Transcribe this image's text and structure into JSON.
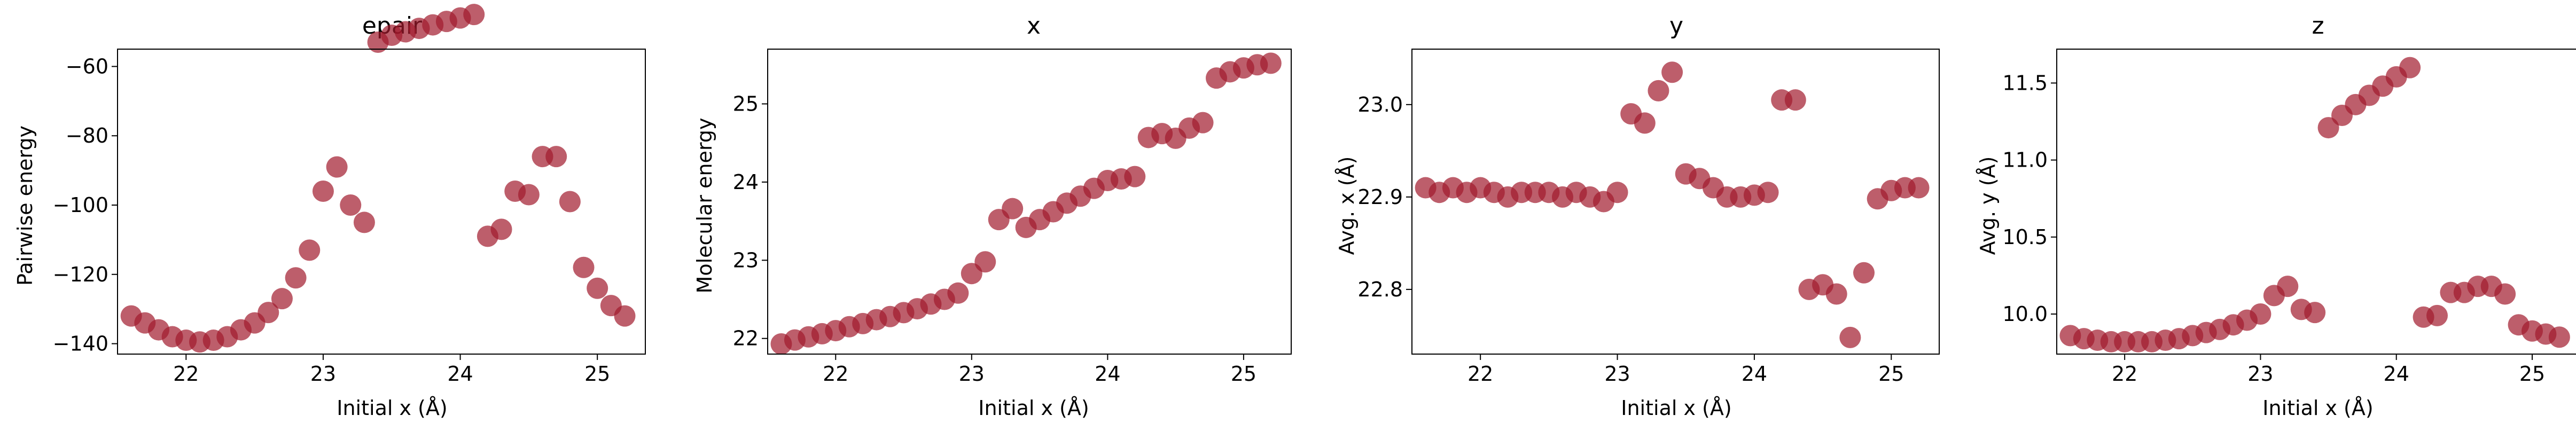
{
  "figure": {
    "marker_color": "#a11a2c",
    "marker_opacity": 0.7,
    "axes_color": "#000000"
  },
  "chart_data": [
    {
      "type": "scatter",
      "title": "epair",
      "xlabel": "Initial x (Å)",
      "ylabel": "Pairwise energy",
      "xlim": [
        21.5,
        25.35
      ],
      "ylim": [
        -143,
        -55
      ],
      "xticks": [
        22,
        23,
        24,
        25
      ],
      "xtick_labels": [
        "22",
        "23",
        "24",
        "25"
      ],
      "yticks": [
        -140,
        -120,
        -100,
        -80,
        -60
      ],
      "ytick_labels": [
        "−140",
        "−120",
        "−100",
        "−80",
        "−60"
      ],
      "x": [
        21.6,
        21.7,
        21.8,
        21.9,
        22.0,
        22.1,
        22.2,
        22.3,
        22.4,
        22.5,
        22.6,
        22.7,
        22.8,
        22.9,
        23.0,
        23.1,
        23.2,
        23.3,
        23.4,
        23.5,
        23.6,
        23.7,
        23.8,
        23.9,
        24.0,
        24.1,
        24.2,
        24.3,
        24.4,
        24.5,
        24.6,
        24.7,
        24.8,
        24.9,
        25.0,
        25.1,
        25.2
      ],
      "y": [
        -132,
        -134,
        -136,
        -138,
        -139,
        -139.5,
        -139,
        -138,
        -136,
        -134,
        -131,
        -127,
        -121,
        -113,
        -96,
        -89,
        -100,
        -105,
        -53,
        -51,
        -50,
        -49,
        -48,
        -47,
        -46,
        -45,
        -109,
        -107,
        -96,
        -97,
        -86,
        -86,
        -99,
        -118,
        -124,
        -129,
        -132
      ]
    },
    {
      "type": "scatter",
      "title": "x",
      "xlabel": "Initial x (Å)",
      "ylabel": "Molecular energy",
      "xlim": [
        21.5,
        25.35
      ],
      "ylim": [
        21.8,
        25.7
      ],
      "xticks": [
        22,
        23,
        24,
        25
      ],
      "xtick_labels": [
        "22",
        "23",
        "24",
        "25"
      ],
      "yticks": [
        22,
        23,
        24,
        25
      ],
      "ytick_labels": [
        "22",
        "23",
        "24",
        "25"
      ],
      "x": [
        21.6,
        21.7,
        21.8,
        21.9,
        22.0,
        22.1,
        22.2,
        22.3,
        22.4,
        22.5,
        22.6,
        22.7,
        22.8,
        22.9,
        23.0,
        23.1,
        23.2,
        23.3,
        23.4,
        23.5,
        23.6,
        23.7,
        23.8,
        23.9,
        24.0,
        24.1,
        24.2,
        24.3,
        24.4,
        24.5,
        24.6,
        24.7,
        24.8,
        24.9,
        25.0,
        25.1,
        25.2
      ],
      "y": [
        21.93,
        21.98,
        22.02,
        22.06,
        22.1,
        22.15,
        22.19,
        22.24,
        22.28,
        22.33,
        22.38,
        22.44,
        22.5,
        22.58,
        22.83,
        22.98,
        23.52,
        23.66,
        23.42,
        23.52,
        23.62,
        23.73,
        23.82,
        23.92,
        24.02,
        24.04,
        24.07,
        24.57,
        24.62,
        24.56,
        24.69,
        24.76,
        25.33,
        25.41,
        25.46,
        25.5,
        25.52
      ]
    },
    {
      "type": "scatter",
      "title": "y",
      "xlabel": "Initial x (Å)",
      "ylabel": "Avg. x (Å)",
      "xlim": [
        21.5,
        25.35
      ],
      "ylim": [
        22.73,
        23.06
      ],
      "xticks": [
        22,
        23,
        24,
        25
      ],
      "xtick_labels": [
        "22",
        "23",
        "24",
        "25"
      ],
      "yticks": [
        22.8,
        22.9,
        23.0
      ],
      "ytick_labels": [
        "22.8",
        "22.9",
        "23.0"
      ],
      "x": [
        21.6,
        21.7,
        21.8,
        21.9,
        22.0,
        22.1,
        22.2,
        22.3,
        22.4,
        22.5,
        22.6,
        22.7,
        22.8,
        22.9,
        23.0,
        23.1,
        23.2,
        23.3,
        23.4,
        23.5,
        23.6,
        23.7,
        23.8,
        23.9,
        24.0,
        24.1,
        24.2,
        24.3,
        24.4,
        24.5,
        24.6,
        24.7,
        24.8,
        24.9,
        25.0,
        25.1,
        25.2
      ],
      "y": [
        22.91,
        22.905,
        22.91,
        22.905,
        22.91,
        22.905,
        22.9,
        22.905,
        22.905,
        22.905,
        22.9,
        22.905,
        22.9,
        22.895,
        22.905,
        22.99,
        22.98,
        23.015,
        23.035,
        22.925,
        22.92,
        22.91,
        22.9,
        22.9,
        22.902,
        22.905,
        23.005,
        23.005,
        22.8,
        22.805,
        22.795,
        22.748,
        22.818,
        22.898,
        22.907,
        22.91,
        22.91
      ]
    },
    {
      "type": "scatter",
      "title": "z",
      "xlabel": "Initial x (Å)",
      "ylabel": "Avg. y (Å)",
      "xlim": [
        21.5,
        25.35
      ],
      "ylim": [
        9.74,
        11.72
      ],
      "xticks": [
        22,
        23,
        24,
        25
      ],
      "xtick_labels": [
        "22",
        "23",
        "24",
        "25"
      ],
      "yticks": [
        10.0,
        10.5,
        11.0,
        11.5
      ],
      "ytick_labels": [
        "10.0",
        "10.5",
        "11.0",
        "11.5"
      ],
      "x": [
        21.6,
        21.7,
        21.8,
        21.9,
        22.0,
        22.1,
        22.2,
        22.3,
        22.4,
        22.5,
        22.6,
        22.7,
        22.8,
        22.9,
        23.0,
        23.1,
        23.2,
        23.3,
        23.4,
        23.5,
        23.6,
        23.7,
        23.8,
        23.9,
        24.0,
        24.1,
        24.2,
        24.3,
        24.4,
        24.5,
        24.6,
        24.7,
        24.8,
        24.9,
        25.0,
        25.1,
        25.2
      ],
      "y": [
        9.86,
        9.84,
        9.83,
        9.82,
        9.82,
        9.82,
        9.82,
        9.83,
        9.84,
        9.86,
        9.88,
        9.9,
        9.93,
        9.96,
        10.0,
        10.12,
        10.18,
        10.03,
        10.01,
        11.21,
        11.29,
        11.36,
        11.42,
        11.48,
        11.54,
        11.6,
        9.98,
        9.99,
        10.14,
        10.14,
        10.18,
        10.18,
        10.13,
        9.93,
        9.89,
        9.87,
        9.85
      ]
    }
  ]
}
